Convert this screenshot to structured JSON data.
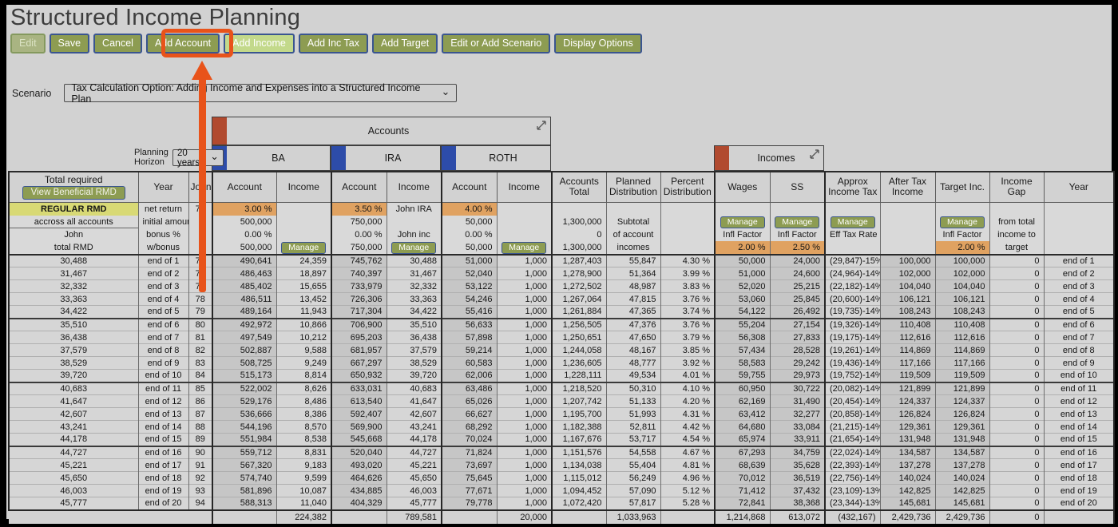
{
  "page": {
    "title": "Structured Income Planning"
  },
  "toolbar": {
    "buttons": [
      {
        "label": "Edit",
        "state": "disabled"
      },
      {
        "label": "Save",
        "state": "normal"
      },
      {
        "label": "Cancel",
        "state": "normal"
      },
      {
        "label": "Add Account",
        "state": "normal"
      },
      {
        "label": "Add Income",
        "state": "highlighted"
      },
      {
        "label": "Add Inc Tax",
        "state": "normal"
      },
      {
        "label": "Add Target",
        "state": "normal"
      },
      {
        "label": "Edit or Add Scenario",
        "state": "normal"
      },
      {
        "label": "Display Options",
        "state": "normal"
      }
    ]
  },
  "scenario": {
    "label": "Scenario",
    "value": "Tax Calculation Option: Adding Income and Expenses into a Structured Income Plan"
  },
  "planning_horizon": {
    "label": "Planning\nHorizon",
    "value": "20 years"
  },
  "groups": {
    "accounts": "Accounts",
    "incomes": "Incomes",
    "ba": "BA",
    "ira": "IRA",
    "roth": "ROTH"
  },
  "annotation": {
    "highlight_target": "Add Income"
  },
  "table": {
    "manage_label": "Manage",
    "view_rmd_button": "View Beneficial RMD",
    "columns": [
      {
        "id": "total-required",
        "label": "Total required",
        "w": 162,
        "align": "ctr",
        "edge": "bl2",
        "header_button": true
      },
      {
        "id": "year",
        "label": "Year",
        "w": 63,
        "align": "ctr"
      },
      {
        "id": "john",
        "label": "John",
        "w": 30,
        "align": "ctr"
      },
      {
        "id": "ba-account",
        "label": "Account",
        "w": 80,
        "align": "num",
        "shade": true,
        "edge": "bl2"
      },
      {
        "id": "ba-income",
        "label": "Income",
        "w": 69,
        "align": "num"
      },
      {
        "id": "ira-account",
        "label": "Account",
        "w": 69,
        "align": "num",
        "shade": true,
        "edge": "bl2"
      },
      {
        "id": "ira-income",
        "label": "Income",
        "w": 69,
        "align": "num"
      },
      {
        "id": "roth-account",
        "label": "Account",
        "w": 69,
        "align": "num",
        "shade": true,
        "edge": "bl2"
      },
      {
        "id": "roth-income",
        "label": "Income",
        "w": 69,
        "align": "num"
      },
      {
        "id": "accounts-total",
        "label": "Accounts\nTotal",
        "w": 68,
        "align": "num",
        "edge": "bl2"
      },
      {
        "id": "planned-distribution",
        "label": "Planned\nDistribution",
        "w": 68,
        "align": "num"
      },
      {
        "id": "percent-distribution",
        "label": "Percent\nDistribution",
        "w": 68,
        "align": "num"
      },
      {
        "id": "wages",
        "label": "Wages",
        "w": 69,
        "align": "num",
        "shade": true,
        "edge": "bl2"
      },
      {
        "id": "ss",
        "label": "SS",
        "w": 69,
        "align": "num",
        "shade": true
      },
      {
        "id": "approx-income-tax",
        "label": "Approx\nIncome Tax",
        "w": 69,
        "align": "num",
        "edge": "bl2"
      },
      {
        "id": "after-tax-income",
        "label": "After Tax\nIncome",
        "w": 69,
        "align": "num",
        "shade": true
      },
      {
        "id": "target-inc",
        "label": "Target Inc.",
        "w": 68,
        "align": "num",
        "shade": true
      },
      {
        "id": "income-gap",
        "label": "Income\nGap",
        "w": 68,
        "align": "num"
      },
      {
        "id": "year-2",
        "label": "Year",
        "w": 88,
        "align": "ctr",
        "edge": "br2"
      }
    ],
    "setup": [
      {
        "special": "rmd",
        "lines": [
          "REGULAR RMD",
          "accross all accounts",
          "John",
          "total RMD"
        ]
      },
      {
        "lines": [
          {
            "t": "net return",
            "c": 1
          },
          {
            "t": "initial amount",
            "c": 1
          },
          {
            "t": "bonus %",
            "c": 1
          },
          {
            "t": "w/bonus",
            "c": 1
          }
        ]
      },
      {
        "lines": [
          {
            "t": "75",
            "c": 1
          }
        ]
      },
      {
        "lines": [
          {
            "t": "3.00 %",
            "o": 1
          },
          {
            "t": "500,000"
          },
          {
            "t": "0.00 %"
          },
          {
            "t": "500,000"
          }
        ]
      },
      {
        "lines": [
          {},
          {},
          {},
          {
            "m": 1
          }
        ]
      },
      {
        "lines": [
          {
            "t": "3.50 %",
            "o": 1
          },
          {
            "t": "750,000"
          },
          {
            "t": "0.00 %"
          },
          {
            "t": "750,000"
          }
        ]
      },
      {
        "lines": [
          {
            "t": "John IRA",
            "c": 1
          },
          {},
          {
            "t": "John inc",
            "c": 1
          },
          {
            "m": 1
          }
        ]
      },
      {
        "lines": [
          {
            "t": "4.00 %",
            "o": 1
          },
          {
            "t": "50,000"
          },
          {
            "t": "0.00 %"
          },
          {
            "t": "50,000"
          }
        ]
      },
      {
        "lines": [
          {},
          {},
          {},
          {
            "m": 1
          }
        ]
      },
      {
        "lines": [
          {},
          {
            "t": "1,300,000"
          },
          {
            "t": "0"
          },
          {
            "t": "1,300,000"
          }
        ]
      },
      {
        "lines": [
          {},
          {
            "t": "Subtotal",
            "c": 1
          },
          {
            "t": "of account",
            "c": 1
          },
          {
            "t": "incomes",
            "c": 1
          }
        ]
      },
      {
        "lines": []
      },
      {
        "lines": [
          {},
          {
            "m": 1
          },
          {
            "t": "Infl Factor",
            "c": 1
          },
          {
            "t": "2.00 %",
            "o": 1
          }
        ]
      },
      {
        "lines": [
          {},
          {
            "m": 1
          },
          {
            "t": "Infl Factor",
            "c": 1
          },
          {
            "t": "2.50 %",
            "o": 1
          }
        ]
      },
      {
        "lines": [
          {},
          {
            "m": 1
          },
          {
            "t": "Eff Tax Rate",
            "c": 1
          },
          {}
        ]
      },
      {
        "lines": []
      },
      {
        "lines": [
          {},
          {
            "m": 1
          },
          {
            "t": "Infl Factor",
            "c": 1
          },
          {
            "t": "2.00 %",
            "o": 1
          }
        ]
      },
      {
        "lines": [
          {},
          {
            "t": "from total",
            "c": 1
          },
          {
            "t": "income to",
            "c": 1
          },
          {
            "t": "target",
            "c": 1
          }
        ]
      },
      {
        "lines": []
      }
    ],
    "rows": [
      [
        "30,488",
        "end of 1",
        "75",
        "490,641",
        "24,359",
        "745,762",
        "30,488",
        "51,000",
        "1,000",
        "1,287,403",
        "55,847",
        "4.30 %",
        "50,000",
        "24,000",
        "(29,847)-15%",
        "100,000",
        "100,000",
        "0",
        "end of 1"
      ],
      [
        "31,467",
        "end of 2",
        "76",
        "486,463",
        "18,897",
        "740,397",
        "31,467",
        "52,040",
        "1,000",
        "1,278,900",
        "51,364",
        "3.99 %",
        "51,000",
        "24,600",
        "(24,964)-14%",
        "102,000",
        "102,000",
        "0",
        "end of 2"
      ],
      [
        "32,332",
        "end of 3",
        "77",
        "485,402",
        "15,655",
        "733,979",
        "32,332",
        "53,122",
        "1,000",
        "1,272,502",
        "48,987",
        "3.83 %",
        "52,020",
        "25,215",
        "(22,182)-14%",
        "104,040",
        "104,040",
        "0",
        "end of 3"
      ],
      [
        "33,363",
        "end of 4",
        "78",
        "486,511",
        "13,452",
        "726,306",
        "33,363",
        "54,246",
        "1,000",
        "1,267,064",
        "47,815",
        "3.76 %",
        "53,060",
        "25,845",
        "(20,600)-14%",
        "106,121",
        "106,121",
        "0",
        "end of 4"
      ],
      [
        "34,422",
        "end of 5",
        "79",
        "489,164",
        "11,943",
        "717,304",
        "34,422",
        "55,416",
        "1,000",
        "1,261,884",
        "47,365",
        "3.74 %",
        "54,122",
        "26,492",
        "(19,735)-14%",
        "108,243",
        "108,243",
        "0",
        "end of 5"
      ],
      [
        "35,510",
        "end of 6",
        "80",
        "492,972",
        "10,866",
        "706,900",
        "35,510",
        "56,633",
        "1,000",
        "1,256,505",
        "47,376",
        "3.76 %",
        "55,204",
        "27,154",
        "(19,326)-14%",
        "110,408",
        "110,408",
        "0",
        "end of 6"
      ],
      [
        "36,438",
        "end of 7",
        "81",
        "497,549",
        "10,212",
        "695,203",
        "36,438",
        "57,898",
        "1,000",
        "1,250,651",
        "47,650",
        "3.79 %",
        "56,308",
        "27,833",
        "(19,175)-14%",
        "112,616",
        "112,616",
        "0",
        "end of 7"
      ],
      [
        "37,579",
        "end of 8",
        "82",
        "502,887",
        "9,588",
        "681,957",
        "37,579",
        "59,214",
        "1,000",
        "1,244,058",
        "48,167",
        "3.85 %",
        "57,434",
        "28,528",
        "(19,261)-14%",
        "114,869",
        "114,869",
        "0",
        "end of 8"
      ],
      [
        "38,529",
        "end of 9",
        "83",
        "508,725",
        "9,249",
        "667,297",
        "38,529",
        "60,583",
        "1,000",
        "1,236,605",
        "48,777",
        "3.92 %",
        "58,583",
        "29,242",
        "(19,436)-14%",
        "117,166",
        "117,166",
        "0",
        "end of 9"
      ],
      [
        "39,720",
        "end of 10",
        "84",
        "515,173",
        "8,814",
        "650,932",
        "39,720",
        "62,006",
        "1,000",
        "1,228,111",
        "49,534",
        "4.01 %",
        "59,755",
        "29,973",
        "(19,752)-14%",
        "119,509",
        "119,509",
        "0",
        "end of 10"
      ],
      [
        "40,683",
        "end of 11",
        "85",
        "522,002",
        "8,626",
        "633,031",
        "40,683",
        "63,486",
        "1,000",
        "1,218,520",
        "50,310",
        "4.10 %",
        "60,950",
        "30,722",
        "(20,082)-14%",
        "121,899",
        "121,899",
        "0",
        "end of 11"
      ],
      [
        "41,647",
        "end of 12",
        "86",
        "529,176",
        "8,486",
        "613,540",
        "41,647",
        "65,026",
        "1,000",
        "1,207,742",
        "51,133",
        "4.20 %",
        "62,169",
        "31,490",
        "(20,454)-14%",
        "124,337",
        "124,337",
        "0",
        "end of 12"
      ],
      [
        "42,607",
        "end of 13",
        "87",
        "536,666",
        "8,386",
        "592,407",
        "42,607",
        "66,627",
        "1,000",
        "1,195,700",
        "51,993",
        "4.31 %",
        "63,412",
        "32,277",
        "(20,858)-14%",
        "126,824",
        "126,824",
        "0",
        "end of 13"
      ],
      [
        "43,241",
        "end of 14",
        "88",
        "544,196",
        "8,570",
        "569,900",
        "43,241",
        "68,292",
        "1,000",
        "1,182,388",
        "52,811",
        "4.42 %",
        "64,680",
        "33,084",
        "(21,215)-14%",
        "129,361",
        "129,361",
        "0",
        "end of 14"
      ],
      [
        "44,178",
        "end of 15",
        "89",
        "551,984",
        "8,538",
        "545,668",
        "44,178",
        "70,024",
        "1,000",
        "1,167,676",
        "53,717",
        "4.54 %",
        "65,974",
        "33,911",
        "(21,654)-14%",
        "131,948",
        "131,948",
        "0",
        "end of 15"
      ],
      [
        "44,727",
        "end of 16",
        "90",
        "559,712",
        "8,831",
        "520,040",
        "44,727",
        "71,824",
        "1,000",
        "1,151,576",
        "54,558",
        "4.67 %",
        "67,293",
        "34,759",
        "(22,024)-14%",
        "134,587",
        "134,587",
        "0",
        "end of 16"
      ],
      [
        "45,221",
        "end of 17",
        "91",
        "567,320",
        "9,183",
        "493,020",
        "45,221",
        "73,697",
        "1,000",
        "1,134,038",
        "55,404",
        "4.81 %",
        "68,639",
        "35,628",
        "(22,393)-14%",
        "137,278",
        "137,278",
        "0",
        "end of 17"
      ],
      [
        "45,650",
        "end of 18",
        "92",
        "574,740",
        "9,599",
        "464,626",
        "45,650",
        "75,645",
        "1,000",
        "1,115,012",
        "56,249",
        "4.96 %",
        "70,012",
        "36,519",
        "(22,756)-14%",
        "140,024",
        "140,024",
        "0",
        "end of 18"
      ],
      [
        "46,003",
        "end of 19",
        "93",
        "581,896",
        "10,087",
        "434,885",
        "46,003",
        "77,671",
        "1,000",
        "1,094,452",
        "57,090",
        "5.12 %",
        "71,412",
        "37,432",
        "(23,109)-13%",
        "142,825",
        "142,825",
        "0",
        "end of 19"
      ],
      [
        "45,777",
        "end of 20",
        "94",
        "588,313",
        "11,040",
        "404,329",
        "45,777",
        "79,778",
        "1,000",
        "1,072,420",
        "57,817",
        "5.28 %",
        "72,841",
        "38,368",
        "(23,344)-13%",
        "145,681",
        "145,681",
        "0",
        "end of 20"
      ]
    ],
    "totals": [
      "",
      "",
      "",
      "",
      "224,382",
      "",
      "789,581",
      "",
      "20,000",
      "",
      "1,033,963",
      "",
      "1,214,868",
      "613,072",
      "(432,167)",
      "2,429,736",
      "2,429,736",
      "0",
      ""
    ]
  }
}
